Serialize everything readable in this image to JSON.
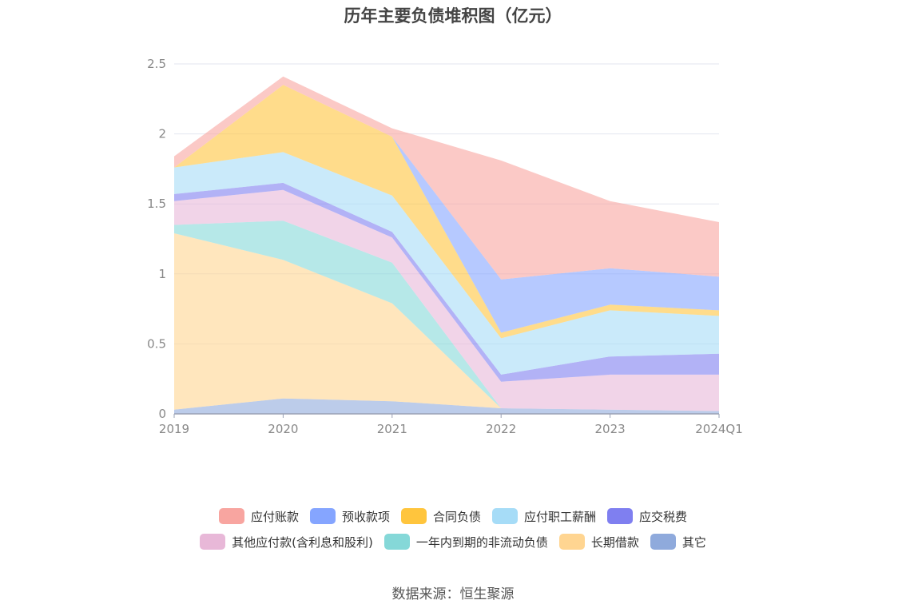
{
  "source_text": "数据来源：恒生聚源",
  "chart_data": {
    "type": "area",
    "stacked": true,
    "title": "历年主要负债堆积图（亿元）",
    "categories": [
      "2019",
      "2020",
      "2021",
      "2022",
      "2023",
      "2024Q1"
    ],
    "ylim": [
      0,
      2.5
    ],
    "yticks": [
      "0",
      "0.5",
      "1",
      "1.5",
      "2",
      "2.5"
    ],
    "grid": true,
    "legend_position": "bottom",
    "series": [
      {
        "name": "其它",
        "color": "#8faadc",
        "values": [
          0.03,
          0.11,
          0.09,
          0.04,
          0.03,
          0.02
        ]
      },
      {
        "name": "长期借款",
        "color": "#ffd591",
        "values": [
          1.26,
          0.99,
          0.7,
          0.0,
          0.0,
          0.0
        ]
      },
      {
        "name": "一年内到期的非流动负债",
        "color": "#85d8d8",
        "values": [
          0.06,
          0.28,
          0.29,
          0.0,
          0.0,
          0.0
        ]
      },
      {
        "name": "其他应付款(含利息和股利)",
        "color": "#e8b8d8",
        "values": [
          0.17,
          0.22,
          0.18,
          0.19,
          0.25,
          0.26
        ]
      },
      {
        "name": "应交税费",
        "color": "#7f7ff0",
        "values": [
          0.05,
          0.05,
          0.04,
          0.05,
          0.13,
          0.15
        ]
      },
      {
        "name": "应付职工薪酬",
        "color": "#a6dcf7",
        "values": [
          0.19,
          0.22,
          0.26,
          0.26,
          0.33,
          0.27
        ]
      },
      {
        "name": "合同负债",
        "color": "#ffc53d",
        "values": [
          0.0,
          0.48,
          0.42,
          0.04,
          0.04,
          0.04
        ]
      },
      {
        "name": "预收款项",
        "color": "#85a5ff",
        "values": [
          0.0,
          0.0,
          0.0,
          0.38,
          0.26,
          0.24
        ]
      },
      {
        "name": "应付账款",
        "color": "#f8a5a0",
        "values": [
          0.08,
          0.06,
          0.06,
          0.85,
          0.48,
          0.39
        ]
      }
    ]
  }
}
